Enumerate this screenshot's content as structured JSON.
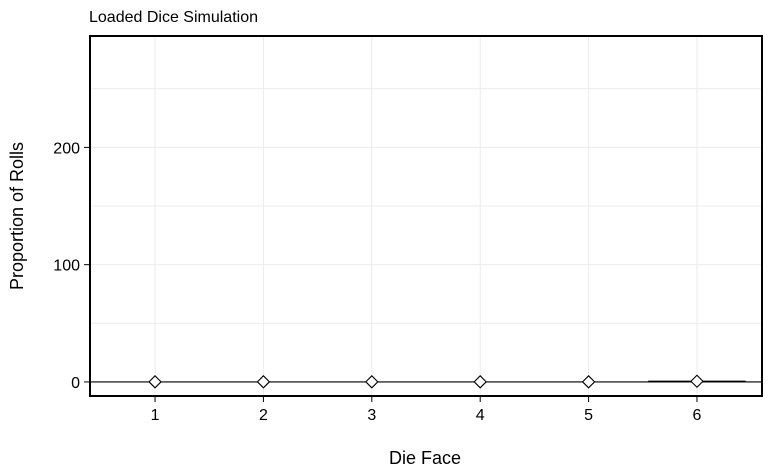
{
  "chart_data": {
    "type": "scatter",
    "title": "Loaded Dice Simulation",
    "xlabel": "Die Face",
    "ylabel": "Proportion of Rolls",
    "categories": [
      "1",
      "2",
      "3",
      "4",
      "5",
      "6"
    ],
    "series": [
      {
        "values": [
          0.09,
          0.09,
          0.09,
          0.09,
          0.09,
          0.55
        ]
      }
    ],
    "reference_segment": {
      "category": "6",
      "value": 0.55
    },
    "hline": 0,
    "ylim": [
      -12,
      295
    ],
    "yticks": [
      0,
      100,
      200
    ],
    "grid": true,
    "marker": "diamond-open"
  }
}
